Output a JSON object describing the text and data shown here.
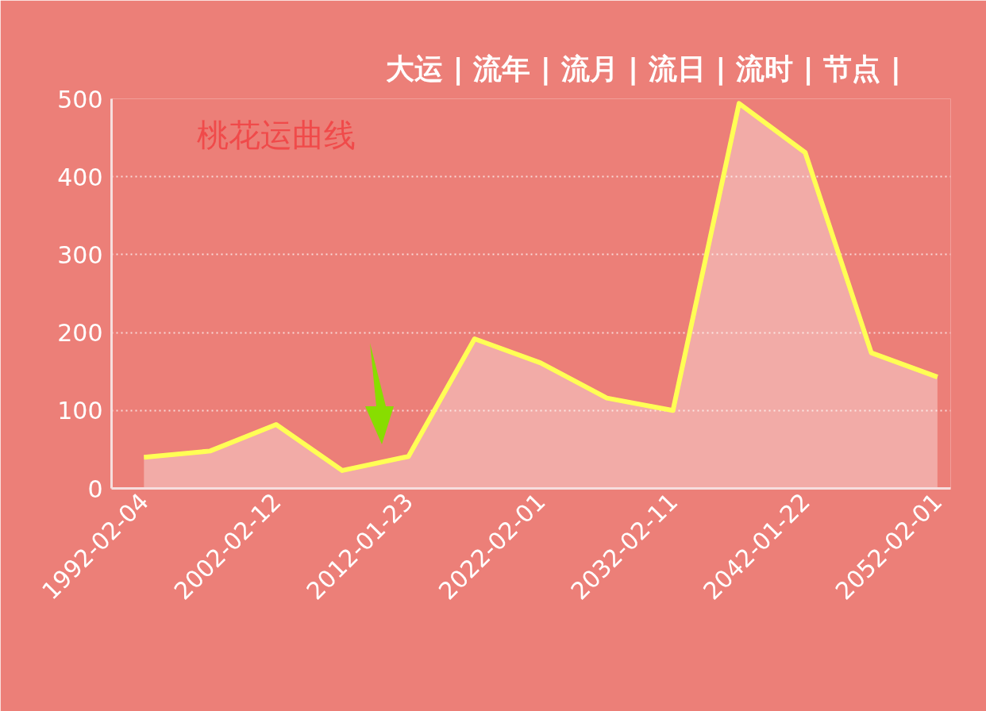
{
  "chart_data": {
    "type": "area",
    "title": "桃花运曲线",
    "annotations": [
      "大运 |",
      "流年 |",
      "流月 |",
      "流日 |",
      "流时 |",
      "节点 |"
    ],
    "categories": [
      "1992-02-04",
      null,
      "2002-02-12",
      null,
      "2012-01-23",
      null,
      "2022-02-01",
      null,
      "2032-02-11",
      null,
      "2042-01-22",
      null,
      "2052-02-01"
    ],
    "series": [
      {
        "color": "#ffff55",
        "values": [
          40,
          48,
          82,
          23,
          41,
          192,
          161,
          116,
          100,
          494,
          431,
          174,
          143
        ]
      }
    ],
    "ylim": [
      0,
      500
    ],
    "yticks": [
      0,
      100,
      200,
      300,
      400,
      500
    ],
    "grid": "y",
    "marker": "none",
    "line_style": "solid"
  }
}
